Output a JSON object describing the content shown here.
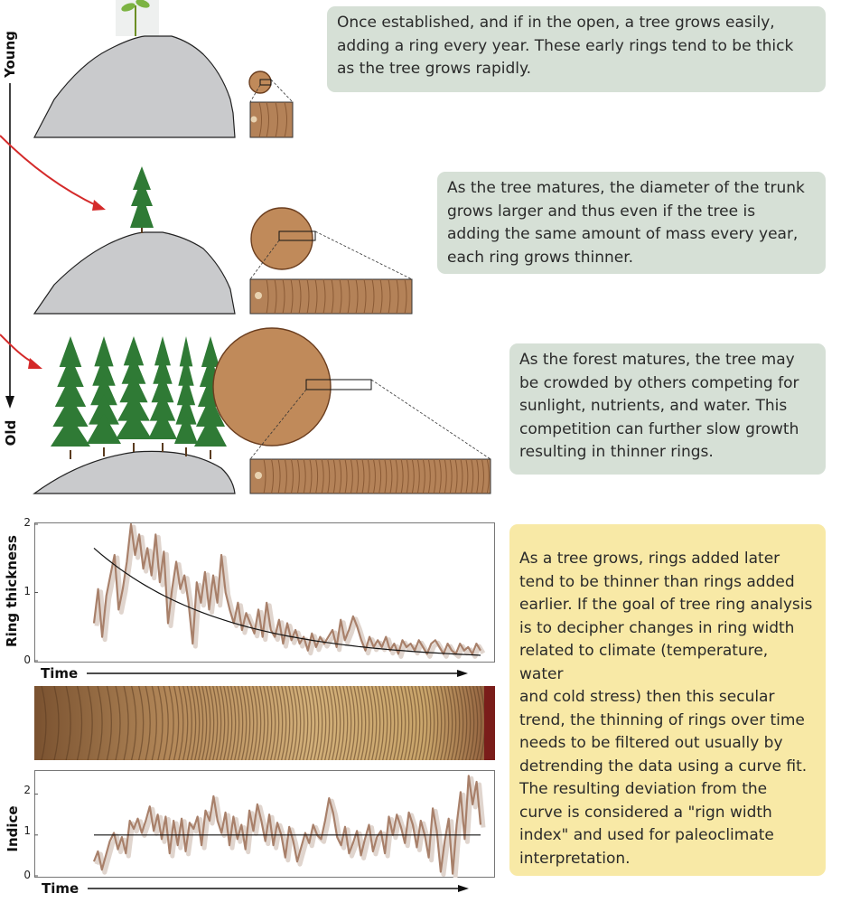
{
  "side_labels": {
    "young": "Young",
    "old": "Old"
  },
  "callouts": [
    {
      "text": "Once established, and if in the open, a  tree grows easily,\nadding a ring every year.  These early rings tend to be thick\nas the tree grows rapidly."
    },
    {
      "text": "As the tree matures, the diameter of the trunk\ngrows larger and thus even if the tree is\nadding the same amount of mass every year,\neach ring grows thinner."
    },
    {
      "text": "As the forest matures, the tree may\nbe crowded by others competing for\nsunlight, nutrients, and water.  This\ncompetition can further slow growth\nresulting in thinner rings."
    },
    {
      "text": "As a tree grows, rings added later\ntend to be thinner than rings added\nearlier.  If the goal of tree ring analysis\nis to decipher changes in ring width\nrelated to climate (temperature, water\nand cold stress) then this secular\ntrend, the thinning of rings over time\nneeds to be filtered out usually by\ndetrending the data using a curve fit.\nThe resulting deviation from the\ncurve is considered a \"rign width\nindex\" and used for paleoclimate\ninterpretation."
    }
  ],
  "colors": {
    "hill": "#c9cacc",
    "wood": "#c08a5a",
    "wood_dark": "#6b3e1f",
    "tree": "#2f7a35",
    "red_arrow": "#d42a2a",
    "series_line": "#a8806a",
    "trend_line": "#111111",
    "callout_green": "#d6e0d6",
    "callout_yellow": "#f8e9a6"
  },
  "chart_data": [
    {
      "type": "line",
      "title": "",
      "ylabel": "Ring thickness",
      "xlabel": "Time",
      "ylim": [
        0,
        2
      ],
      "yticks": [
        "0",
        "1",
        "2"
      ],
      "series": [
        {
          "values": [
            0.55,
            1.05,
            0.35,
            0.95,
            1.25,
            1.55,
            0.75,
            1.05,
            1.45,
            2.0,
            1.55,
            1.85,
            1.35,
            1.65,
            1.25,
            1.85,
            1.15,
            1.6,
            0.55,
            1.05,
            1.45,
            1.05,
            1.25,
            0.85,
            0.25,
            1.15,
            0.85,
            1.3,
            0.75,
            1.25,
            0.85,
            1.55,
            1.0,
            0.75,
            0.55,
            0.85,
            0.45,
            0.7,
            0.55,
            0.4,
            0.75,
            0.35,
            0.85,
            0.45,
            0.35,
            0.6,
            0.25,
            0.55,
            0.3,
            0.45,
            0.25,
            0.35,
            0.15,
            0.4,
            0.2,
            0.35,
            0.25,
            0.35,
            0.45,
            0.2,
            0.6,
            0.3,
            0.45,
            0.65,
            0.5,
            0.3,
            0.15,
            0.35,
            0.2,
            0.3,
            0.2,
            0.35,
            0.15,
            0.25,
            0.1,
            0.3,
            0.2,
            0.25,
            0.15,
            0.3,
            0.2,
            0.1,
            0.25,
            0.3,
            0.2,
            0.1,
            0.25,
            0.15,
            0.1,
            0.25,
            0.15,
            0.2,
            0.1,
            0.25,
            0.15
          ]
        }
      ],
      "trend": {
        "type": "exponential_fit",
        "start": 1.65,
        "end": 0.08
      }
    },
    {
      "type": "line",
      "title": "",
      "ylabel": "Indice",
      "xlabel": "Time",
      "ylim": [
        0,
        2.5
      ],
      "yticks": [
        "0",
        "1",
        "2"
      ],
      "series": [
        {
          "values": [
            0.35,
            0.6,
            0.15,
            0.5,
            0.85,
            1.05,
            0.65,
            0.95,
            0.55,
            1.35,
            1.15,
            1.4,
            1.05,
            1.35,
            1.7,
            1.1,
            1.5,
            0.9,
            1.45,
            0.55,
            1.35,
            0.75,
            1.4,
            0.6,
            1.3,
            1.15,
            1.45,
            0.75,
            1.6,
            1.35,
            1.95,
            1.35,
            1.05,
            1.55,
            0.75,
            1.45,
            0.9,
            1.25,
            0.65,
            1.6,
            1.1,
            1.75,
            1.35,
            0.85,
            1.5,
            0.75,
            1.3,
            1.0,
            0.45,
            1.2,
            0.85,
            0.35,
            0.7,
            1.05,
            0.8,
            1.25,
            1.0,
            0.9,
            1.35,
            1.9,
            1.55,
            0.95,
            0.75,
            1.2,
            0.55,
            0.8,
            1.1,
            0.5,
            0.9,
            1.25,
            0.6,
            0.95,
            1.1,
            0.55,
            1.45,
            1.0,
            1.5,
            1.2,
            0.8,
            1.55,
            1.25,
            0.7,
            1.35,
            1.0,
            0.45,
            1.65,
            1.1,
            0.1,
            0.85,
            1.4,
            0.05,
            1.25,
            2.05,
            0.9,
            2.45,
            1.75,
            2.3,
            1.25
          ]
        }
      ],
      "trend": {
        "type": "constant",
        "value": 1.0
      }
    }
  ]
}
